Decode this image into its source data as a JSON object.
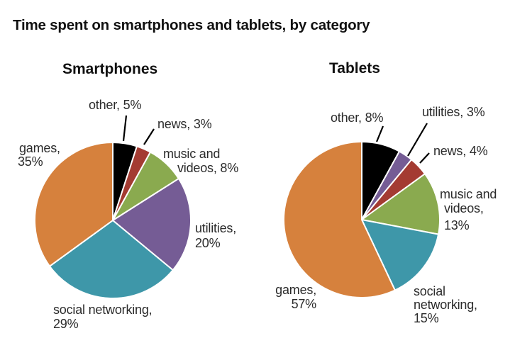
{
  "title": "Time spent on smartphones and tablets, by category",
  "text_color": "#2b2b2b",
  "palette": {
    "games": "#d6813d",
    "social_networking": "#3e97a9",
    "utilities": "#755c95",
    "music_and_videos": "#8aaa4f",
    "news": "#a43b32",
    "other": "#000000"
  },
  "chart_data": [
    {
      "type": "pie",
      "title": "Smartphones",
      "direction": "clockwise",
      "start_angle_deg": 0,
      "categories": [
        "other",
        "news",
        "music and videos",
        "utilities",
        "social networking",
        "games"
      ],
      "values": [
        5,
        3,
        8,
        20,
        29,
        35
      ],
      "colors": [
        "#000000",
        "#a43b32",
        "#8aaa4f",
        "#755c95",
        "#3e97a9",
        "#d6813d"
      ],
      "labels": {
        "other": [
          "other, 5%"
        ],
        "news": [
          "news, 3%"
        ],
        "music": [
          "music and",
          "videos, 8%"
        ],
        "utilities": [
          "utilities,",
          "20%"
        ],
        "social": [
          "social networking,",
          "29%"
        ],
        "games": [
          "games,",
          "35%"
        ]
      }
    },
    {
      "type": "pie",
      "title": "Tablets",
      "direction": "clockwise",
      "start_angle_deg": 0,
      "categories": [
        "other",
        "utilities",
        "news",
        "music and videos",
        "social networking",
        "games"
      ],
      "values": [
        8,
        3,
        4,
        13,
        15,
        57
      ],
      "colors": [
        "#000000",
        "#755c95",
        "#a43b32",
        "#8aaa4f",
        "#3e97a9",
        "#d6813d"
      ],
      "labels": {
        "other": [
          "other, 8%"
        ],
        "utilities": [
          "utilities, 3%"
        ],
        "news": [
          "news, 4%"
        ],
        "music": [
          "music and",
          "videos,",
          "13%"
        ],
        "social": [
          "social",
          "networking,",
          "15%"
        ],
        "games": [
          "games,",
          "57%"
        ]
      }
    }
  ]
}
